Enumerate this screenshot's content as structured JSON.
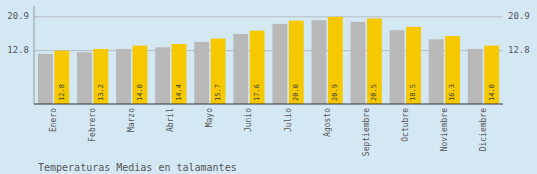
{
  "chart_data": {
    "type": "bar",
    "title": "Temperaturas Medias en talamantes",
    "categories": [
      "Enero",
      "Febrero",
      "Marzo",
      "Abril",
      "Mayo",
      "Junio",
      "Julio",
      "Agosto",
      "Septiembre",
      "Octubre",
      "Noviembre",
      "Diciembre"
    ],
    "series": [
      {
        "color": "#B8B8B8",
        "values": [
          12.0,
          12.4,
          13.2,
          13.6,
          14.9,
          16.8,
          19.2,
          20.1,
          19.7,
          17.7,
          15.5,
          13.2
        ]
      },
      {
        "color": "#F5C800",
        "values": [
          12.8,
          13.2,
          14.0,
          14.4,
          15.7,
          17.6,
          20.0,
          20.9,
          20.5,
          18.5,
          16.3,
          14.0
        ],
        "value_labels": [
          "12.8",
          "13.2",
          "14.0",
          "14.4",
          "15.7",
          "17.6",
          "20.0",
          "20.9",
          "20.5",
          "18.5",
          "16.3",
          "14.0"
        ],
        "data_labels": true
      }
    ],
    "ylim": [
      0,
      23.5
    ],
    "yticks": [
      12.8,
      20.9
    ],
    "grid": true
  }
}
